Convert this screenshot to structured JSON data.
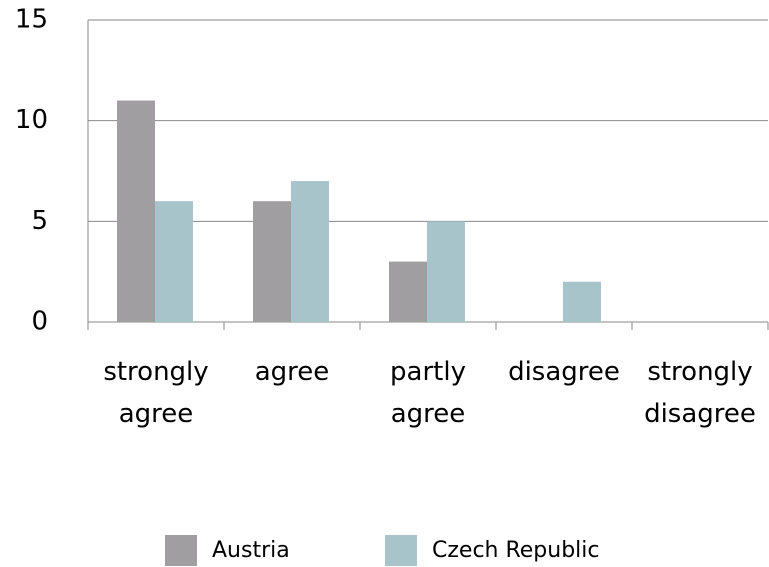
{
  "chart_data": {
    "type": "bar",
    "categories": [
      "strongly agree",
      "agree",
      "partly agree",
      "disagree",
      "strongly disagree"
    ],
    "series": [
      {
        "name": "Austria",
        "color": "#a09ea0",
        "values": [
          11,
          6,
          3,
          0,
          0
        ]
      },
      {
        "name": "Czech Republic",
        "color": "#a8c4cb",
        "values": [
          6,
          7,
          5,
          2,
          0
        ]
      }
    ],
    "ylim": [
      0,
      15
    ],
    "yticks": [
      0,
      5,
      10,
      15
    ],
    "grid": true,
    "legend": "bottom"
  }
}
